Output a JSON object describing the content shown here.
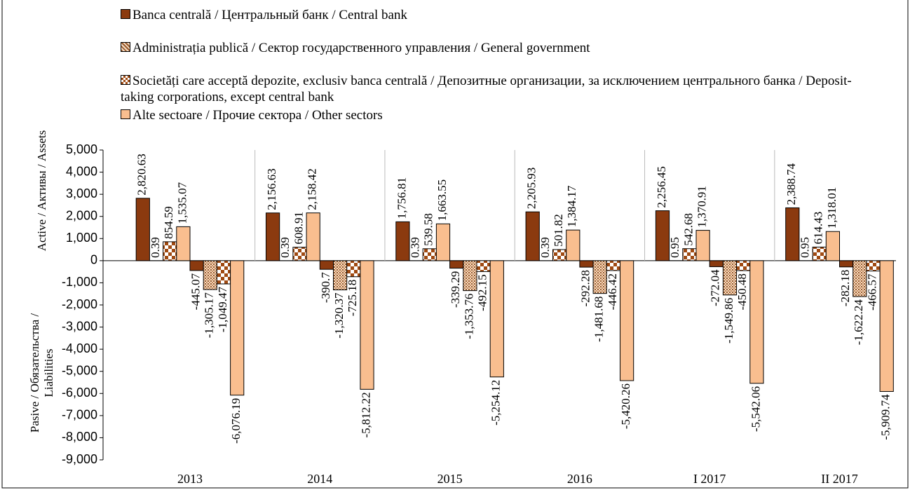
{
  "chart_data": {
    "type": "bar",
    "y_label_top": "Active / Активы / Assets",
    "y_label_bottom": "Pasive / Обязательства / Liabilities",
    "categories": [
      "2013",
      "2014",
      "2015",
      "2016",
      "I 2017",
      "II 2017"
    ],
    "ylim": [
      -9000,
      5000
    ],
    "yticks": [
      {
        "value": 5000,
        "label": "5,000"
      },
      {
        "value": 4000,
        "label": "4,000"
      },
      {
        "value": 3000,
        "label": "3,000"
      },
      {
        "value": 2000,
        "label": "2,000"
      },
      {
        "value": 1000,
        "label": "1,000"
      },
      0,
      {
        "value": -1000,
        "label": "-1,000"
      },
      {
        "value": -2000,
        "label": "-2,000"
      },
      {
        "value": -3000,
        "label": "-3,000"
      },
      {
        "value": -4000,
        "label": "-4,000"
      },
      {
        "value": -5000,
        "label": "-5,000"
      },
      {
        "value": -6000,
        "label": "-6,000"
      },
      {
        "value": -7000,
        "label": "-7,000"
      },
      {
        "value": -8000,
        "label": "-8,000"
      },
      {
        "value": -9000,
        "label": "-9,000"
      }
    ],
    "series": [
      {
        "name": "Banca centrală / Центральный банк / Central bank",
        "color": "#8b3a0f",
        "values": [
          2820.63,
          2156.63,
          1756.81,
          2205.93,
          2256.45,
          2388.74
        ],
        "value_labels": [
          "2,820.63",
          "2,156.63",
          "1,756.81",
          "2,205.93",
          "2,256.45",
          "2,388.74"
        ],
        "liabilities": [
          -445.07,
          -390.7,
          -339.29,
          -292.28,
          -272.04,
          -282.18
        ],
        "liability_labels": [
          "-445.07",
          "-390.7",
          "-339.29",
          "-292.28",
          "-272.04",
          "-282.18"
        ]
      },
      {
        "name": "Administrația publică / Сектор государственного управления / General government",
        "color": "#c98b5a",
        "values": [
          0.39,
          0.39,
          0.39,
          0.39,
          0.95,
          0.95
        ],
        "value_labels": [
          "0.39",
          "0.39",
          "0.39",
          "0.39",
          "0.95",
          "0.95"
        ],
        "liabilities": [
          -1305.17,
          -1320.37,
          -1353.76,
          -1481.68,
          -1549.86,
          -1622.24
        ],
        "liability_labels": [
          "-1,305.17",
          "-1,320.37",
          "-1,353.76",
          "-1,481.68",
          "-1,549.86",
          "-1,622.24"
        ]
      },
      {
        "name": "Societăți care acceptă depozite, exclusiv banca centrală / Депозитные организации, за исключением центрального банка / Deposit-taking corporations, except central bank",
        "color": "#a04a12",
        "values": [
          854.59,
          608.91,
          539.58,
          501.82,
          542.68,
          614.43
        ],
        "value_labels": [
          "854.59",
          "608.91",
          "539.58",
          "501.82",
          "542.68",
          "614.43"
        ],
        "liabilities": [
          -1049.47,
          -725.18,
          -492.15,
          -446.42,
          -450.48,
          -466.57
        ],
        "liability_labels": [
          "-1,049.47",
          "-725.18",
          "-492.15",
          "-446.42",
          "-450.48",
          "-466.57"
        ]
      },
      {
        "name": "Alte sectoare / Прочие сектора / Other sectors",
        "color": "#f9be8f",
        "values": [
          1535.07,
          2158.42,
          1663.55,
          1384.17,
          1370.91,
          1318.01
        ],
        "value_labels": [
          "1,535.07",
          "2,158.42",
          "1,663.55",
          "1,384.17",
          "1,370.91",
          "1,318.01"
        ],
        "liabilities": [
          -6076.19,
          -5812.22,
          -5254.12,
          -5420.26,
          -5542.06,
          -5909.74
        ],
        "liability_labels": [
          "-6,076.19",
          "-5,812.22",
          "-5,254.12",
          "-5,420.26",
          "-5,542.06",
          "-5,909.74"
        ]
      }
    ]
  }
}
